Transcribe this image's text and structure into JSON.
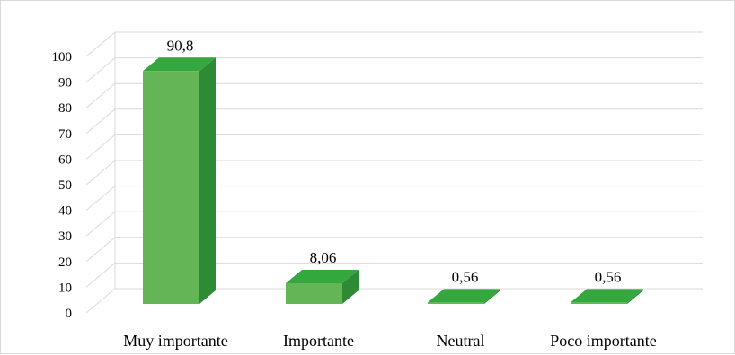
{
  "chart_data": {
    "type": "bar",
    "categories": [
      "Muy importante",
      "Importante",
      "Neutral",
      "Poco importante"
    ],
    "values": [
      90.8,
      8.06,
      0.56,
      0.56
    ],
    "value_labels": [
      "90,8",
      "8,06",
      "0,56",
      "0,56"
    ],
    "yticks": [
      "0",
      "10",
      "20",
      "30",
      "40",
      "50",
      "60",
      "70",
      "80",
      "90",
      "100"
    ],
    "ylim": [
      0,
      100
    ],
    "style": "3d",
    "grid": true,
    "legend": "none",
    "colors": {
      "front": "#63b556",
      "side": "#2f8a35",
      "top": "#34a83e"
    }
  }
}
